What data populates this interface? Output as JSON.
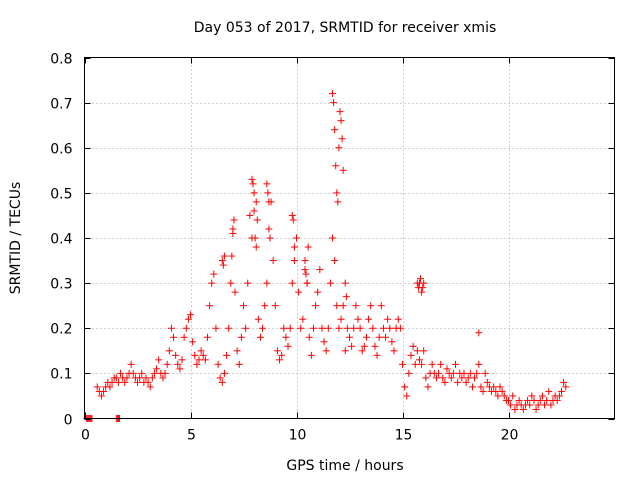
{
  "chart_data": {
    "type": "scatter",
    "title": "Day 053 of 2017, SRMTID for receiver xmis",
    "xlabel": "GPS time / hours",
    "ylabel": "SRMTID / TECUs",
    "xlim": [
      0,
      25
    ],
    "ylim": [
      0,
      0.8
    ],
    "xticks": [
      0,
      5,
      10,
      15,
      20
    ],
    "yticks": [
      0,
      0.1,
      0.2,
      0.3,
      0.4,
      0.5,
      0.6,
      0.7,
      0.8
    ],
    "xtick_labels": [
      "0",
      "5",
      "10",
      "15",
      "20"
    ],
    "ytick_labels": [
      "0",
      "0.1",
      "0.2",
      "0.3",
      "0.4",
      "0.5",
      "0.6",
      "0.7",
      "0.8"
    ],
    "grid": true,
    "marker": "+",
    "color": "#ff0000",
    "series": [
      {
        "name": "SRMTID",
        "x": [
          0.1,
          0.15,
          0.2,
          0.25,
          0.3,
          0.35,
          1.5,
          1.55,
          1.6,
          1.65,
          0.6,
          0.7,
          0.8,
          0.9,
          1.0,
          1.1,
          1.2,
          1.3,
          1.4,
          1.5,
          1.6,
          1.7,
          1.8,
          1.9,
          2.0,
          2.1,
          2.2,
          2.3,
          2.4,
          2.5,
          2.6,
          2.7,
          2.8,
          2.9,
          3.0,
          3.1,
          3.2,
          3.3,
          3.4,
          3.5,
          3.6,
          3.7,
          3.8,
          3.9,
          4.0,
          4.1,
          4.2,
          4.3,
          4.4,
          4.5,
          4.6,
          4.7,
          4.8,
          4.9,
          5.0,
          5.1,
          5.2,
          5.3,
          5.4,
          5.5,
          5.6,
          5.7,
          5.8,
          5.9,
          6.0,
          6.1,
          6.2,
          6.3,
          6.4,
          6.5,
          6.6,
          6.7,
          6.8,
          6.9,
          7.0,
          7.1,
          7.2,
          7.3,
          7.4,
          7.5,
          7.6,
          7.7,
          7.8,
          7.9,
          8.0,
          8.1,
          8.2,
          8.3,
          8.4,
          8.5,
          8.6,
          8.7,
          8.8,
          8.9,
          9.0,
          9.1,
          9.2,
          9.3,
          9.4,
          9.5,
          9.6,
          9.7,
          9.8,
          9.9,
          10.0,
          10.1,
          10.2,
          10.3,
          10.4,
          10.5,
          10.6,
          10.7,
          10.8,
          10.9,
          11.0,
          11.1,
          11.2,
          11.3,
          11.4,
          11.5,
          11.6,
          11.7,
          11.8,
          11.9,
          12.0,
          12.1,
          12.2,
          12.3,
          12.4,
          12.5,
          12.6,
          12.7,
          12.8,
          12.9,
          13.0,
          13.1,
          13.2,
          13.3,
          13.4,
          13.5,
          13.6,
          13.7,
          13.8,
          13.9,
          14.0,
          14.1,
          14.2,
          14.3,
          14.4,
          14.5,
          14.6,
          14.7,
          14.8,
          14.9,
          15.0,
          15.1,
          15.2,
          15.3,
          15.4,
          15.5,
          15.6,
          15.7,
          15.8,
          15.9,
          16.0,
          16.1,
          16.2,
          16.3,
          16.4,
          16.5,
          16.6,
          16.7,
          16.8,
          16.9,
          17.0,
          17.1,
          17.2,
          17.3,
          17.4,
          17.5,
          17.6,
          17.7,
          17.8,
          17.9,
          18.0,
          18.1,
          18.2,
          18.3,
          18.4,
          18.5,
          18.6,
          18.7,
          18.8,
          18.9,
          19.0,
          19.1,
          19.2,
          19.3,
          19.4,
          19.5,
          19.6,
          19.7,
          19.8,
          19.9,
          20.0,
          20.1,
          20.2,
          20.3,
          20.4,
          20.5,
          20.6,
          20.7,
          20.8,
          20.9,
          21.0,
          21.1,
          21.2,
          21.3,
          21.4,
          21.5,
          21.6,
          21.7,
          21.8,
          21.9,
          22.0,
          22.1,
          22.2,
          22.3,
          22.4,
          22.5,
          22.6,
          22.7,
          6.95,
          7.0,
          7.05,
          7.9,
          7.95,
          8.0,
          8.05,
          8.1,
          8.15,
          8.6,
          8.65,
          8.7,
          8.75,
          6.5,
          6.55,
          6.6,
          9.8,
          9.85,
          9.9,
          10.4,
          10.45,
          10.5,
          10.55,
          11.7,
          11.75,
          11.8,
          11.85,
          11.9,
          11.95,
          12.0,
          12.05,
          12.1,
          12.15,
          12.2,
          12.3,
          12.35,
          15.7,
          15.75,
          15.8,
          15.85,
          15.9,
          15.95,
          16.0,
          18.6
        ],
        "y": [
          0.0,
          0.0,
          0.0,
          0.0,
          0.0,
          0.0,
          0.0,
          0.0,
          0.0,
          0.0,
          0.07,
          0.06,
          0.05,
          0.06,
          0.07,
          0.08,
          0.07,
          0.08,
          0.09,
          0.09,
          0.08,
          0.1,
          0.09,
          0.08,
          0.09,
          0.1,
          0.12,
          0.1,
          0.09,
          0.08,
          0.09,
          0.1,
          0.08,
          0.09,
          0.08,
          0.07,
          0.09,
          0.1,
          0.11,
          0.13,
          0.1,
          0.09,
          0.1,
          0.12,
          0.15,
          0.2,
          0.18,
          0.14,
          0.12,
          0.11,
          0.13,
          0.18,
          0.2,
          0.22,
          0.23,
          0.17,
          0.14,
          0.12,
          0.13,
          0.15,
          0.14,
          0.13,
          0.18,
          0.25,
          0.3,
          0.32,
          0.2,
          0.12,
          0.09,
          0.08,
          0.1,
          0.14,
          0.2,
          0.3,
          0.42,
          0.28,
          0.15,
          0.12,
          0.18,
          0.25,
          0.2,
          0.3,
          0.45,
          0.4,
          0.5,
          0.38,
          0.22,
          0.18,
          0.2,
          0.25,
          0.3,
          0.42,
          0.48,
          0.35,
          0.25,
          0.15,
          0.13,
          0.14,
          0.2,
          0.18,
          0.16,
          0.2,
          0.3,
          0.35,
          0.4,
          0.28,
          0.2,
          0.22,
          0.33,
          0.3,
          0.18,
          0.14,
          0.2,
          0.25,
          0.28,
          0.33,
          0.2,
          0.17,
          0.15,
          0.2,
          0.3,
          0.4,
          0.35,
          0.25,
          0.2,
          0.22,
          0.25,
          0.15,
          0.2,
          0.18,
          0.16,
          0.2,
          0.25,
          0.22,
          0.2,
          0.15,
          0.16,
          0.18,
          0.22,
          0.25,
          0.2,
          0.16,
          0.14,
          0.18,
          0.25,
          0.2,
          0.18,
          0.22,
          0.2,
          0.17,
          0.15,
          0.2,
          0.22,
          0.2,
          0.12,
          0.07,
          0.05,
          0.1,
          0.14,
          0.16,
          0.12,
          0.15,
          0.13,
          0.12,
          0.15,
          0.09,
          0.07,
          0.1,
          0.12,
          0.1,
          0.09,
          0.1,
          0.12,
          0.09,
          0.08,
          0.11,
          0.1,
          0.09,
          0.1,
          0.12,
          0.08,
          0.1,
          0.09,
          0.1,
          0.08,
          0.09,
          0.1,
          0.07,
          0.09,
          0.1,
          0.12,
          0.07,
          0.06,
          0.1,
          0.08,
          0.07,
          0.06,
          0.07,
          0.06,
          0.05,
          0.07,
          0.06,
          0.05,
          0.04,
          0.04,
          0.03,
          0.05,
          0.02,
          0.03,
          0.04,
          0.03,
          0.02,
          0.03,
          0.04,
          0.03,
          0.05,
          0.04,
          0.02,
          0.03,
          0.04,
          0.05,
          0.03,
          0.04,
          0.06,
          0.03,
          0.04,
          0.05,
          0.04,
          0.05,
          0.06,
          0.08,
          0.07,
          0.36,
          0.41,
          0.44,
          0.53,
          0.52,
          0.46,
          0.4,
          0.48,
          0.44,
          0.52,
          0.5,
          0.48,
          0.4,
          0.35,
          0.34,
          0.36,
          0.45,
          0.44,
          0.38,
          0.35,
          0.32,
          0.3,
          0.38,
          0.72,
          0.7,
          0.64,
          0.56,
          0.5,
          0.48,
          0.6,
          0.68,
          0.66,
          0.62,
          0.55,
          0.3,
          0.27,
          0.3,
          0.29,
          0.3,
          0.31,
          0.28,
          0.29,
          0.3,
          0.19
        ]
      }
    ]
  }
}
